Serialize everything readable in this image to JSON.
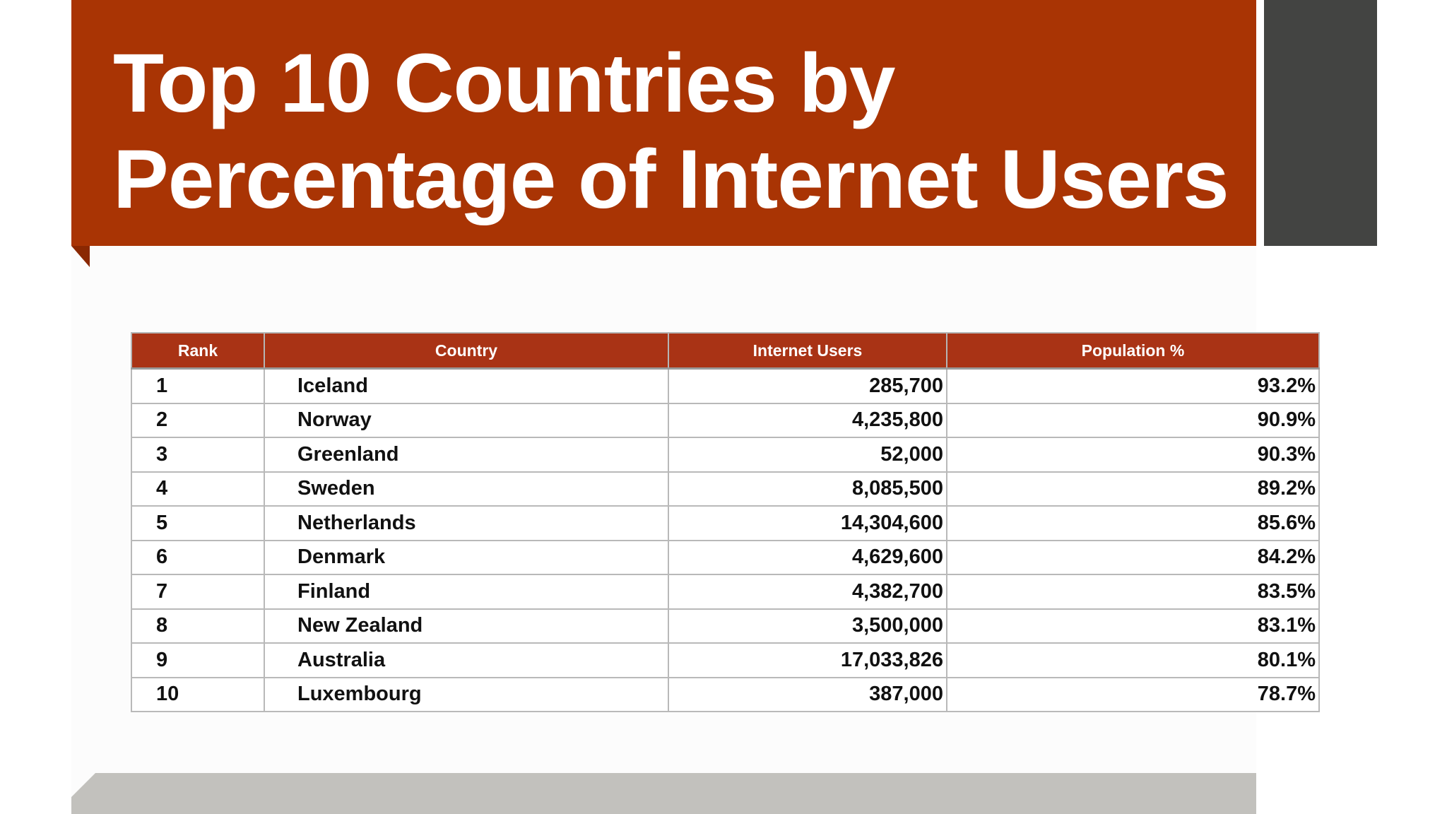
{
  "title": {
    "line1": "Top 10 Countries by",
    "line2": "Percentage of Internet Users"
  },
  "table": {
    "headers": [
      "Rank",
      "Country",
      "Internet Users",
      "Population %"
    ],
    "rows": [
      {
        "rank": "1",
        "country": "Iceland",
        "users": "285,700",
        "pct": "93.2%"
      },
      {
        "rank": "2",
        "country": "Norway",
        "users": "4,235,800",
        "pct": "90.9%"
      },
      {
        "rank": "3",
        "country": "Greenland",
        "users": "52,000",
        "pct": "90.3%"
      },
      {
        "rank": "4",
        "country": "Sweden",
        "users": "8,085,500",
        "pct": "89.2%"
      },
      {
        "rank": "5",
        "country": "Netherlands",
        "users": "14,304,600",
        "pct": "85.6%"
      },
      {
        "rank": "6",
        "country": "Denmark",
        "users": "4,629,600",
        "pct": "84.2%"
      },
      {
        "rank": "7",
        "country": "Finland",
        "users": "4,382,700",
        "pct": "83.5%"
      },
      {
        "rank": "8",
        "country": "New Zealand",
        "users": "3,500,000",
        "pct": "83.1%"
      },
      {
        "rank": "9",
        "country": "Australia",
        "users": "17,033,826",
        "pct": "80.1%"
      },
      {
        "rank": "10",
        "country": "Luxembourg",
        "users": "387,000",
        "pct": "78.7%"
      }
    ]
  },
  "colors": {
    "banner": "#a93404",
    "table_header": "#a93315",
    "side_block": "#434442",
    "footer_bar": "#c2c1bd"
  }
}
